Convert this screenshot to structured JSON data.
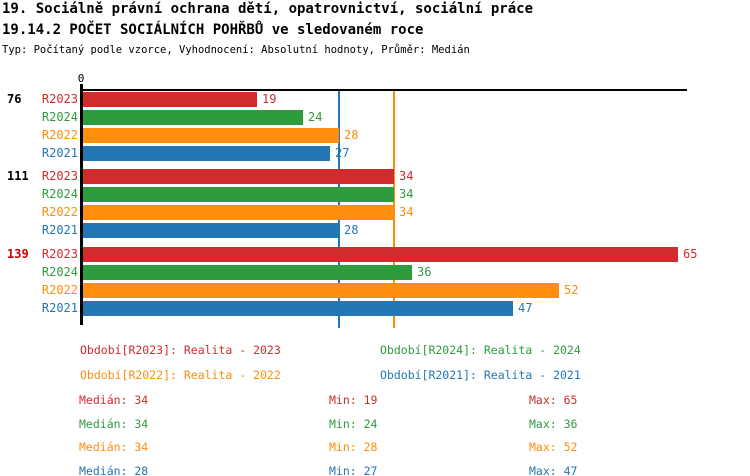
{
  "header": {
    "title_line1": "19. Sociálně právní ochrana dětí, opatrovnictví, sociální práce",
    "title_line2": "19.14.2 POČET SOCIÁLNÍCH POHŘBŮ ve sledovaném roce",
    "subtitle": "Typ: Počítaný podle vzorce, Vyhodnocení: Absolutní hodnoty, Průměr: Medián"
  },
  "colors": {
    "R2023": "#d12b2e",
    "R2024": "#2e9b3d",
    "R2022": "#ff8d0e",
    "R2021": "#2377b4",
    "highlight": "#cc0000",
    "axis": "#000000"
  },
  "chart_data": {
    "type": "bar",
    "orientation": "horizontal",
    "title": "19.14.2 POČET SOCIÁLNÍCH POHŘBŮ ve sledovaném roce",
    "x_origin_label": "0",
    "xlim": [
      0,
      66
    ],
    "grid": false,
    "series_order": [
      "R2023",
      "R2024",
      "R2022",
      "R2021"
    ],
    "groups": [
      {
        "label": "76",
        "highlighted": false,
        "values": {
          "R2023": 19,
          "R2024": 24,
          "R2022": 28,
          "R2021": 27
        }
      },
      {
        "label": "111",
        "highlighted": false,
        "values": {
          "R2023": 34,
          "R2024": 34,
          "R2022": 34,
          "R2021": 28
        }
      },
      {
        "label": "139",
        "highlighted": true,
        "values": {
          "R2023": 65,
          "R2024": 36,
          "R2022": 52,
          "R2021": 47
        }
      }
    ],
    "reference_lines": [
      {
        "series": "R2022",
        "value": 34
      },
      {
        "series": "R2021",
        "value": 28
      }
    ],
    "stats": [
      {
        "series": "R2023",
        "median": 34,
        "min": 19,
        "max": 65
      },
      {
        "series": "R2024",
        "median": 34,
        "min": 24,
        "max": 36
      },
      {
        "series": "R2022",
        "median": 34,
        "min": 28,
        "max": 52
      },
      {
        "series": "R2021",
        "median": 28,
        "min": 27,
        "max": 47
      }
    ]
  },
  "legend": [
    {
      "series": "R2023",
      "label": "Období[R2023]: Realita - 2023"
    },
    {
      "series": "R2024",
      "label": "Období[R2024]: Realita - 2024"
    },
    {
      "series": "R2022",
      "label": "Období[R2022]: Realita - 2022"
    },
    {
      "series": "R2021",
      "label": "Období[R2021]: Realita - 2021"
    }
  ],
  "stats_labels": {
    "median": "Medián",
    "min": "Min",
    "max": "Max"
  }
}
